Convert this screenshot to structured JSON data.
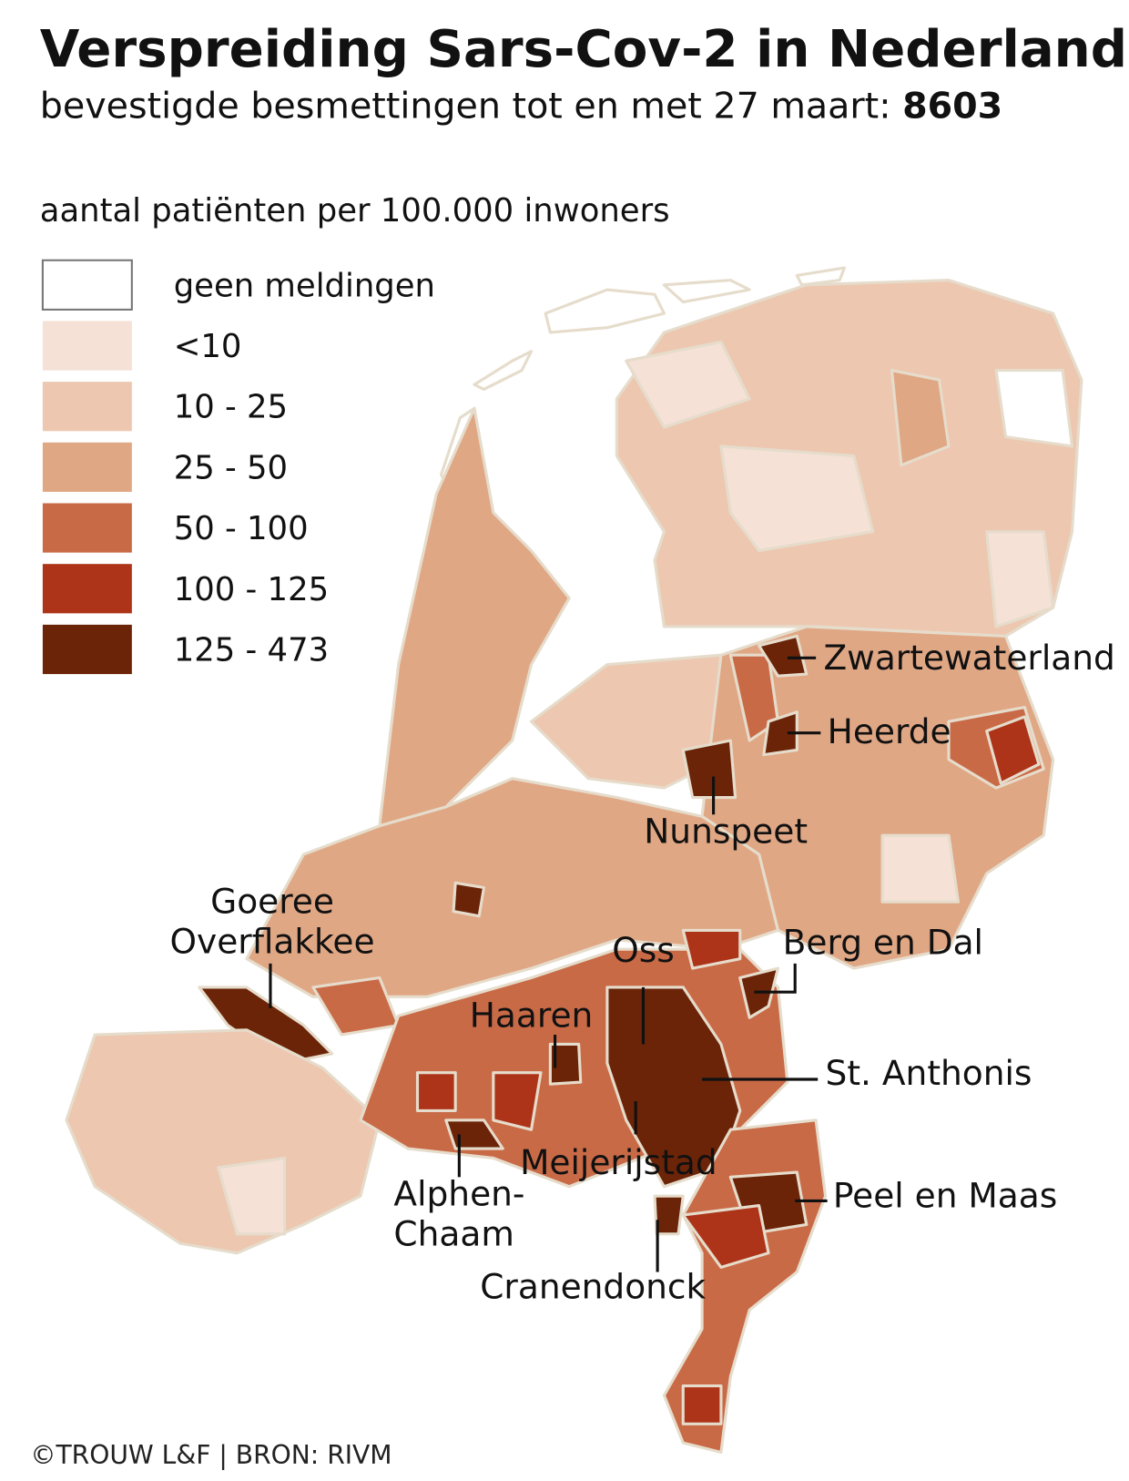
{
  "title": "Verspreiding Sars-Cov-2 in Nederland",
  "subtitle": {
    "text": "bevestigde besmettingen tot en met 27 maart:",
    "total": 8603
  },
  "legend": {
    "title": "aantal patiënten per 100.000 inwoners",
    "items": [
      {
        "label": "geen meldingen",
        "color": "#ffffff"
      },
      {
        "label": "<10",
        "color": "#f5e1d6"
      },
      {
        "label": "10 - 25",
        "color": "#edc7b0"
      },
      {
        "label": "25 - 50",
        "color": "#e0a785"
      },
      {
        "label": "50 - 100",
        "color": "#c96a47"
      },
      {
        "label": "100 - 125",
        "color": "#ad3419"
      },
      {
        "label": "125 - 473",
        "color": "#6b2408"
      }
    ]
  },
  "annotations": [
    {
      "lines": [
        "Zwartewaterland"
      ]
    },
    {
      "lines": [
        "Heerde"
      ]
    },
    {
      "lines": [
        "Nunspeet"
      ]
    },
    {
      "lines": [
        "Goeree",
        "Overflakkee"
      ]
    },
    {
      "lines": [
        "Berg en Dal"
      ]
    },
    {
      "lines": [
        "Oss"
      ]
    },
    {
      "lines": [
        "Haaren"
      ]
    },
    {
      "lines": [
        "St. Anthonis"
      ]
    },
    {
      "lines": [
        "Meijerijstad"
      ]
    },
    {
      "lines": [
        "Peel en Maas"
      ]
    },
    {
      "lines": [
        "Alphen-",
        "Chaam"
      ]
    },
    {
      "lines": [
        "Cranendonck"
      ]
    }
  ],
  "credit": "©TROUW L&F | BRON: RIVM"
}
